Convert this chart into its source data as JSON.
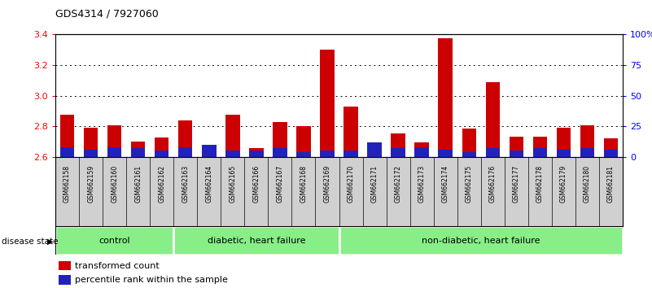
{
  "title": "GDS4314 / 7927060",
  "samples": [
    "GSM662158",
    "GSM662159",
    "GSM662160",
    "GSM662161",
    "GSM662162",
    "GSM662163",
    "GSM662164",
    "GSM662165",
    "GSM662166",
    "GSM662167",
    "GSM662168",
    "GSM662169",
    "GSM662170",
    "GSM662171",
    "GSM662172",
    "GSM662173",
    "GSM662174",
    "GSM662175",
    "GSM662176",
    "GSM662177",
    "GSM662178",
    "GSM662179",
    "GSM662180",
    "GSM662181"
  ],
  "red_values": [
    2.875,
    2.79,
    2.805,
    2.7,
    2.725,
    2.84,
    2.635,
    2.875,
    2.66,
    2.83,
    2.8,
    3.3,
    2.93,
    2.635,
    2.755,
    2.695,
    3.375,
    2.785,
    3.09,
    2.73,
    2.73,
    2.79,
    2.805,
    2.72
  ],
  "blue_percentiles": [
    8,
    6,
    8,
    7,
    5,
    8,
    10,
    5,
    5,
    7,
    4,
    5,
    5,
    12,
    7,
    8,
    6,
    4,
    7,
    5,
    7,
    6,
    7,
    6
  ],
  "group_boundaries": [
    5,
    12
  ],
  "group_labels": [
    "control",
    "diabetic, heart failure",
    "non-diabetic, heart failure"
  ],
  "ylim_left": [
    2.6,
    3.4
  ],
  "ylim_right": [
    0,
    100
  ],
  "yticks_left": [
    2.6,
    2.8,
    3.0,
    3.2,
    3.4
  ],
  "yticks_right": [
    0,
    25,
    50,
    75,
    100
  ],
  "yticklabels_right": [
    "0",
    "25",
    "50",
    "75",
    "100%"
  ],
  "bar_color_red": "#CC0000",
  "bar_color_blue": "#2222BB",
  "bar_width": 0.6,
  "label_bg_color": "#D0D0D0",
  "label_border_color": "#000000",
  "group_fill_color": "#88EE88",
  "group_border_color": "#000000",
  "legend_red_label": "transformed count",
  "legend_blue_label": "percentile rank within the sample",
  "disease_state_label": "disease state"
}
